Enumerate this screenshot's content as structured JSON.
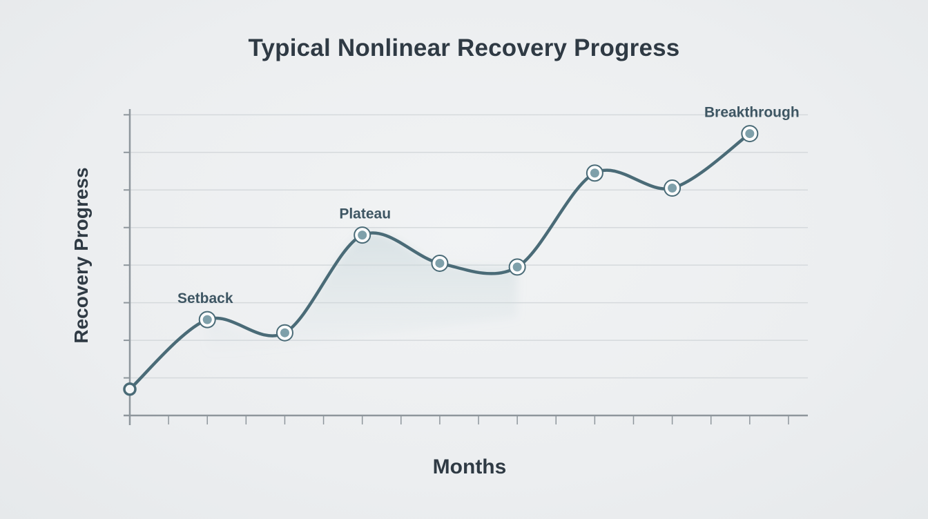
{
  "chart_data": {
    "type": "line",
    "title": "Typical Nonlinear Recovery Progress",
    "xlabel": "Months",
    "ylabel": "Recovery Progress",
    "x": [
      0,
      2,
      4,
      6,
      8,
      10,
      12,
      14,
      16
    ],
    "xlim": [
      0,
      17.5
    ],
    "ylim": [
      0,
      8.3
    ],
    "grid": true,
    "series": [
      {
        "values": [
          0.7,
          2.55,
          2.2,
          4.8,
          4.05,
          3.95,
          6.45,
          6.05,
          7.5
        ]
      }
    ],
    "annotations": [
      {
        "text": "Setback",
        "x": 2,
        "y": 2.55
      },
      {
        "text": "Plateau",
        "x": 6,
        "y": 4.8
      },
      {
        "text": "Breakthrough",
        "x": 16,
        "y": 7.5
      }
    ],
    "colors": {
      "line": "#4a6b77",
      "marker_fill": "#7fa0aa",
      "marker_ring": "#ffffff",
      "grid": "#d5d9dc",
      "axis": "#8e969c",
      "area": "#c7d6da"
    }
  }
}
